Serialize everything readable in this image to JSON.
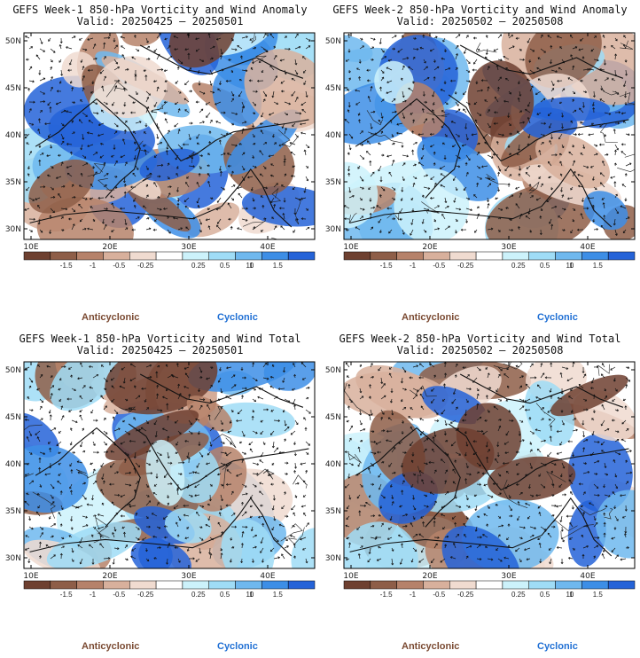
{
  "colors": {
    "anticyclonic": [
      "#6e4030",
      "#8e5e48",
      "#b6826a",
      "#d8b09c",
      "#f0dbd0"
    ],
    "neutral": "#ffffff",
    "cyclonic": [
      "#ccf2fb",
      "#9fdcf6",
      "#6fb8ee",
      "#3d8ee6",
      "#2563d8"
    ],
    "label_anti": "#7a4a32",
    "label_cyc": "#1f6fd4"
  },
  "colorbar": {
    "ticks": [
      "-1.5",
      "-1",
      "-0.5",
      "-0.25",
      "0.25",
      "0.5",
      "1",
      "1.5"
    ],
    "unit": "10"
  },
  "axes": {
    "lat_labels": [
      "50N",
      "45N",
      "40N",
      "35N",
      "30N"
    ],
    "lon_labels": [
      "10E",
      "20E",
      "30E",
      "40E"
    ]
  },
  "labels": {
    "anticyclonic": "Anticyclonic",
    "cyclonic": "Cyclonic"
  },
  "panels": [
    {
      "id": "p1",
      "title": "GEFS Week-1 850-hPa Vorticity and Wind Anomaly",
      "valid": "Valid: 20250425 – 20250501",
      "seed": 11
    },
    {
      "id": "p2",
      "title": "GEFS Week-2 850-hPa Vorticity and Wind Anomaly",
      "valid": "Valid: 20250502 – 20250508",
      "seed": 23
    },
    {
      "id": "p3",
      "title": "GEFS Week-1 850-hPa Vorticity and Wind Total",
      "valid": "Valid: 20250425 – 20250501",
      "seed": 37
    },
    {
      "id": "p4",
      "title": "GEFS Week-2 850-hPa Vorticity and Wind Total",
      "valid": "Valid: 20250502 – 20250508",
      "seed": 53
    }
  ]
}
